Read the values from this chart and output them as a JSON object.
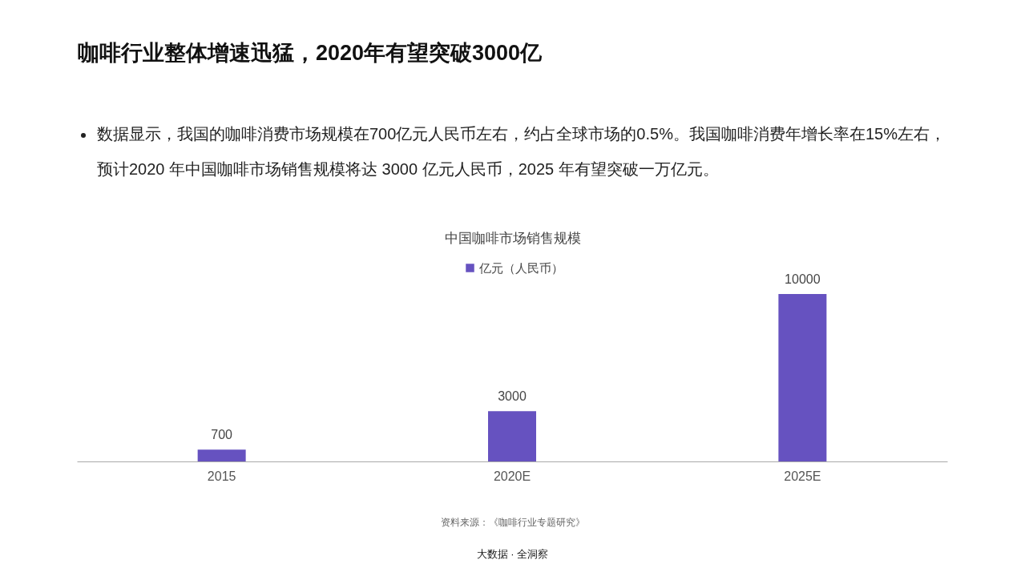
{
  "chart_data": {
    "type": "bar",
    "title": "咖啡行业整体增速迅猛，2020年有望突破3000亿",
    "subtitle": "数据显示，我国的咖啡消费市场规模在700亿元人民币左右，约占全球市场的0.5%。我国咖啡消费年增长率在15%左右，预计2020 年中国咖啡市场销售规模将达 3000 亿元人民币，2025 年有望突破一万亿元。",
    "categories": [
      "2015",
      "2020E",
      "2025E"
    ],
    "series": [
      {
        "name": "亿元（人民币）",
        "color": "#6652c0",
        "values": [
          700,
          3000,
          10000
        ]
      }
    ],
    "data_labels": true,
    "legend": "top",
    "grid": false,
    "annotations": [
      "中国咖啡市场销售规模",
      "资料来源：《咖啡行业专题研究》",
      "大数据 · 全洞察"
    ]
  }
}
